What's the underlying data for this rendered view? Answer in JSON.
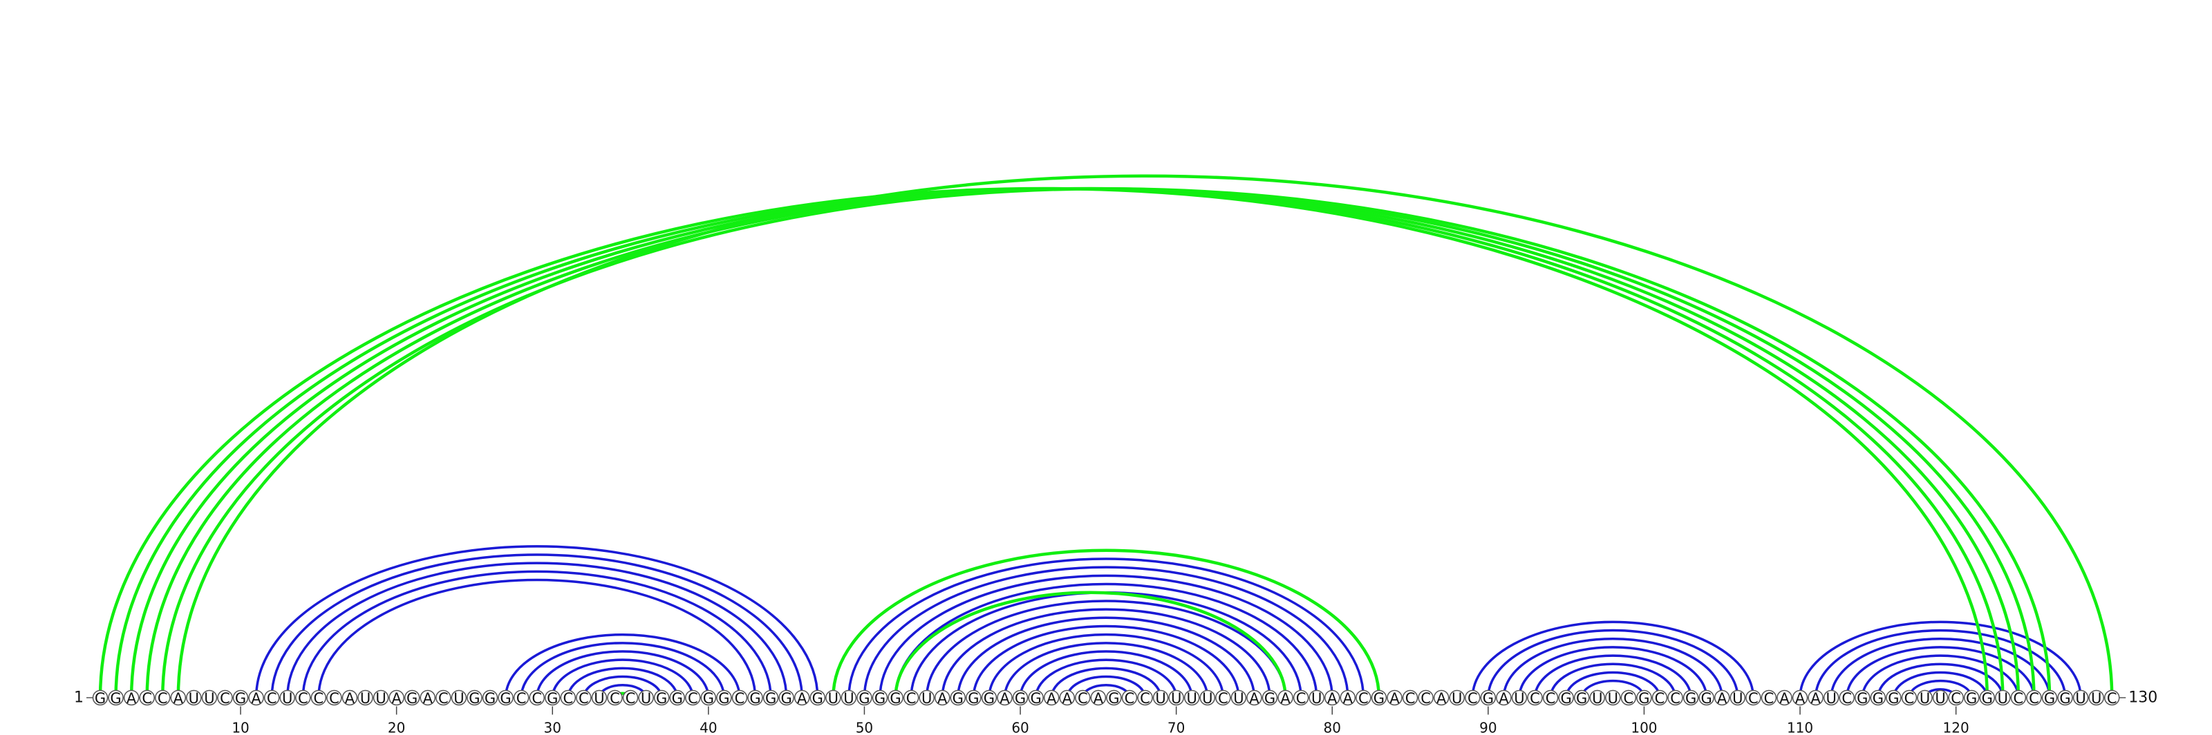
{
  "sequence": "GGACCAUUCGACUCCCAUUAGACUGGGCCGCCUCCUGGCGGCGGGAGUUGGGCUAGGGAGGAACAGCCUUUUCUAGACUAACGACCAUCGAUCCGGUUCGCCGGAUCCAAAUCGGGCUUCGGUCCGGUUC",
  "start_label": "1",
  "end_label": "130",
  "ticks": [
    10,
    20,
    30,
    40,
    50,
    60,
    70,
    80,
    90,
    100,
    110,
    120
  ],
  "colors": {
    "stem": "#1a1ad6",
    "pseudoknot": "#11ee11"
  },
  "chart_data": {
    "type": "arc-diagram",
    "length": 130,
    "stem_pairs": [
      [
        11,
        47
      ],
      [
        12,
        46
      ],
      [
        13,
        45
      ],
      [
        14,
        44
      ],
      [
        15,
        43
      ],
      [
        27,
        42
      ],
      [
        28,
        41
      ],
      [
        29,
        40
      ],
      [
        30,
        39
      ],
      [
        31,
        38
      ],
      [
        32,
        37
      ],
      [
        33,
        36
      ],
      [
        49,
        82
      ],
      [
        50,
        81
      ],
      [
        51,
        80
      ],
      [
        52,
        79
      ],
      [
        53,
        78
      ],
      [
        54,
        77
      ],
      [
        55,
        76
      ],
      [
        56,
        75
      ],
      [
        57,
        74
      ],
      [
        58,
        73
      ],
      [
        59,
        72
      ],
      [
        60,
        71
      ],
      [
        61,
        70
      ],
      [
        62,
        69
      ],
      [
        63,
        68
      ],
      [
        64,
        67
      ],
      [
        89,
        107
      ],
      [
        90,
        106
      ],
      [
        91,
        105
      ],
      [
        92,
        104
      ],
      [
        93,
        103
      ],
      [
        94,
        102
      ],
      [
        95,
        101
      ],
      [
        96,
        100
      ],
      [
        110,
        128
      ],
      [
        111,
        127
      ],
      [
        112,
        126
      ],
      [
        113,
        125
      ],
      [
        114,
        124
      ],
      [
        115,
        123
      ],
      [
        116,
        122
      ],
      [
        117,
        121
      ],
      [
        118,
        120
      ]
    ],
    "pseudoknot_pairs": [
      [
        1,
        122
      ],
      [
        2,
        123
      ],
      [
        3,
        124
      ],
      [
        4,
        125
      ],
      [
        5,
        126
      ],
      [
        6,
        130
      ],
      [
        48,
        83
      ],
      [
        52,
        77
      ],
      [
        34,
        35
      ]
    ]
  }
}
